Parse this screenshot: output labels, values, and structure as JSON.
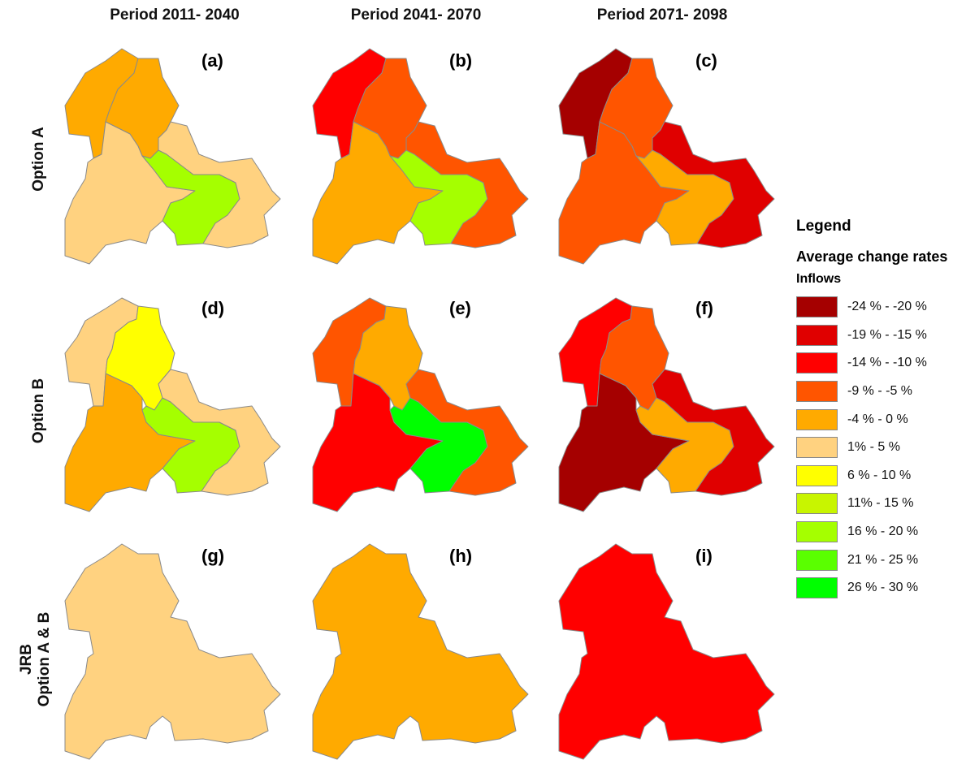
{
  "columns": [
    "Period 2011- 2040",
    "Period 2041- 2070",
    "Period 2071- 2098"
  ],
  "rows": [
    {
      "label": "Option A"
    },
    {
      "label": "Option B"
    },
    {
      "label_line1": "JRB",
      "label_line2": "Option A & B"
    }
  ],
  "legend": {
    "title": "Legend",
    "subtitle": "Average change rates",
    "variable": "Inflows",
    "classes": [
      {
        "label": "-24 % - -20 %",
        "color": "#a50000"
      },
      {
        "label": "-19 % - -15 %",
        "color": "#e00000"
      },
      {
        "label": "-14 % - -10 %",
        "color": "#ff0000"
      },
      {
        "label": "-9 % - -5 %",
        "color": "#ff5500"
      },
      {
        "label": "-4 % - 0 %",
        "color": "#ffaa00"
      },
      {
        "label": "1% - 5 %",
        "color": "#ffd280"
      },
      {
        "label": "6 % - 10 %",
        "color": "#ffff00"
      },
      {
        "label": "11% - 15 %",
        "color": "#c8f500"
      },
      {
        "label": "16 % - 20 %",
        "color": "#a5ff00"
      },
      {
        "label": "21 % - 25 %",
        "color": "#5aff00"
      },
      {
        "label": "26 % - 30 %",
        "color": "#00ff00"
      }
    ]
  },
  "panels": [
    {
      "label": "(a)",
      "layout": "A",
      "classes": [
        4,
        4,
        5,
        8,
        5
      ]
    },
    {
      "label": "(b)",
      "layout": "A",
      "classes": [
        2,
        3,
        4,
        8,
        3
      ]
    },
    {
      "label": "(c)",
      "layout": "A",
      "classes": [
        0,
        3,
        3,
        4,
        1
      ]
    },
    {
      "label": "(d)",
      "layout": "B",
      "classes": [
        5,
        6,
        4,
        8,
        5
      ]
    },
    {
      "label": "(e)",
      "layout": "B",
      "classes": [
        3,
        4,
        2,
        10,
        3
      ]
    },
    {
      "label": "(f)",
      "layout": "B",
      "classes": [
        2,
        3,
        0,
        4,
        1
      ]
    },
    {
      "label": "(g)",
      "layout": "JRB",
      "classes": [
        5
      ]
    },
    {
      "label": "(h)",
      "layout": "JRB",
      "classes": [
        4
      ]
    },
    {
      "label": "(i)",
      "layout": "JRB",
      "classes": [
        2
      ]
    }
  ]
}
